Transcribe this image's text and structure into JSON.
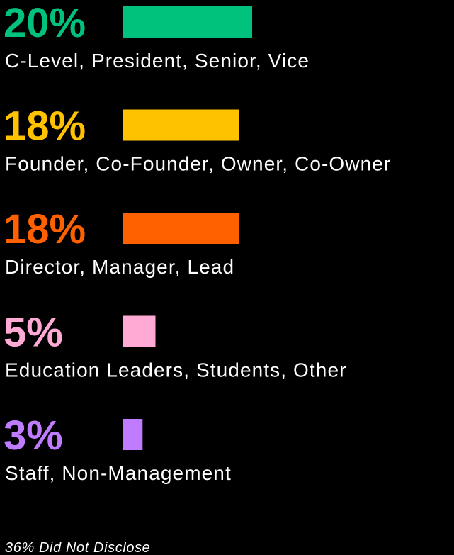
{
  "chart_data": {
    "type": "bar",
    "categories": [
      "C-Level, President, Senior, Vice",
      "Founder, Co-Founder, Owner, Co-Owner",
      "Director, Manager, Lead",
      "Education Leaders, Students, Other",
      "Staff, Non-Management"
    ],
    "values": [
      20,
      18,
      18,
      5,
      3
    ],
    "value_labels": [
      "20%",
      "18%",
      "18%",
      "5%",
      "3%"
    ],
    "colors": [
      "#00c27c",
      "#ffc200",
      "#ff6000",
      "#ffaad4",
      "#c07cff"
    ],
    "note": "36% Did Not Disclose"
  }
}
